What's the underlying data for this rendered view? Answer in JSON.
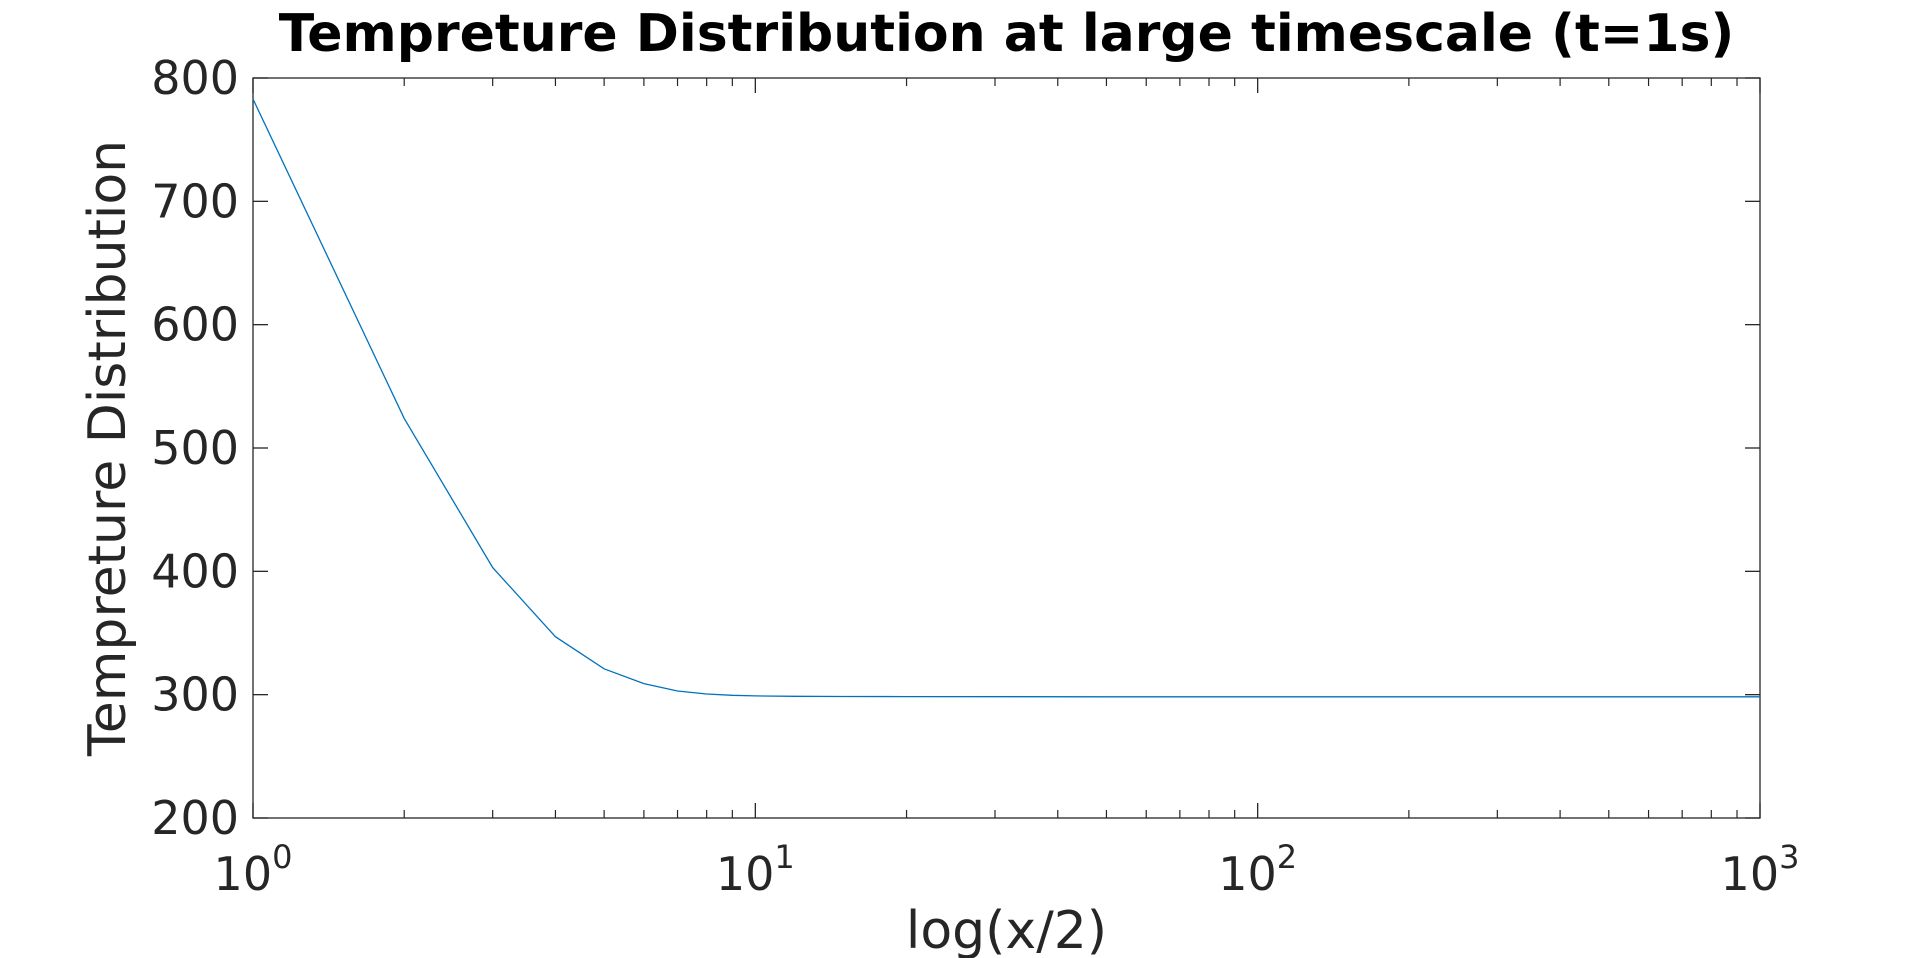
{
  "chart_data": {
    "type": "line",
    "title": "Tempreture Distribution at large timescale (t=1s)",
    "xlabel": "log(x/2)",
    "ylabel": "Tempreture Distribution",
    "x_scale": "log",
    "xlim": [
      1,
      1000
    ],
    "ylim": [
      200,
      800
    ],
    "x_ticks": [
      {
        "base": "10",
        "exp": "0",
        "value": 1
      },
      {
        "base": "10",
        "exp": "1",
        "value": 10
      },
      {
        "base": "10",
        "exp": "2",
        "value": 100
      },
      {
        "base": "10",
        "exp": "3",
        "value": 1000
      }
    ],
    "y_ticks": [
      "200",
      "300",
      "400",
      "500",
      "600",
      "700",
      "800"
    ],
    "grid": false,
    "box": true,
    "series": [
      {
        "color": "#0072BD",
        "x": [
          1,
          2,
          3,
          4,
          5,
          6,
          7,
          8,
          9,
          10,
          12,
          15,
          20,
          50,
          100,
          200,
          500,
          1000
        ],
        "y": [
          783,
          524,
          403,
          347,
          321,
          309,
          303,
          300.5,
          299.5,
          299,
          298.7,
          298.5,
          298.4,
          298.3,
          298.3,
          298.3,
          298.3,
          298.3
        ]
      }
    ]
  }
}
